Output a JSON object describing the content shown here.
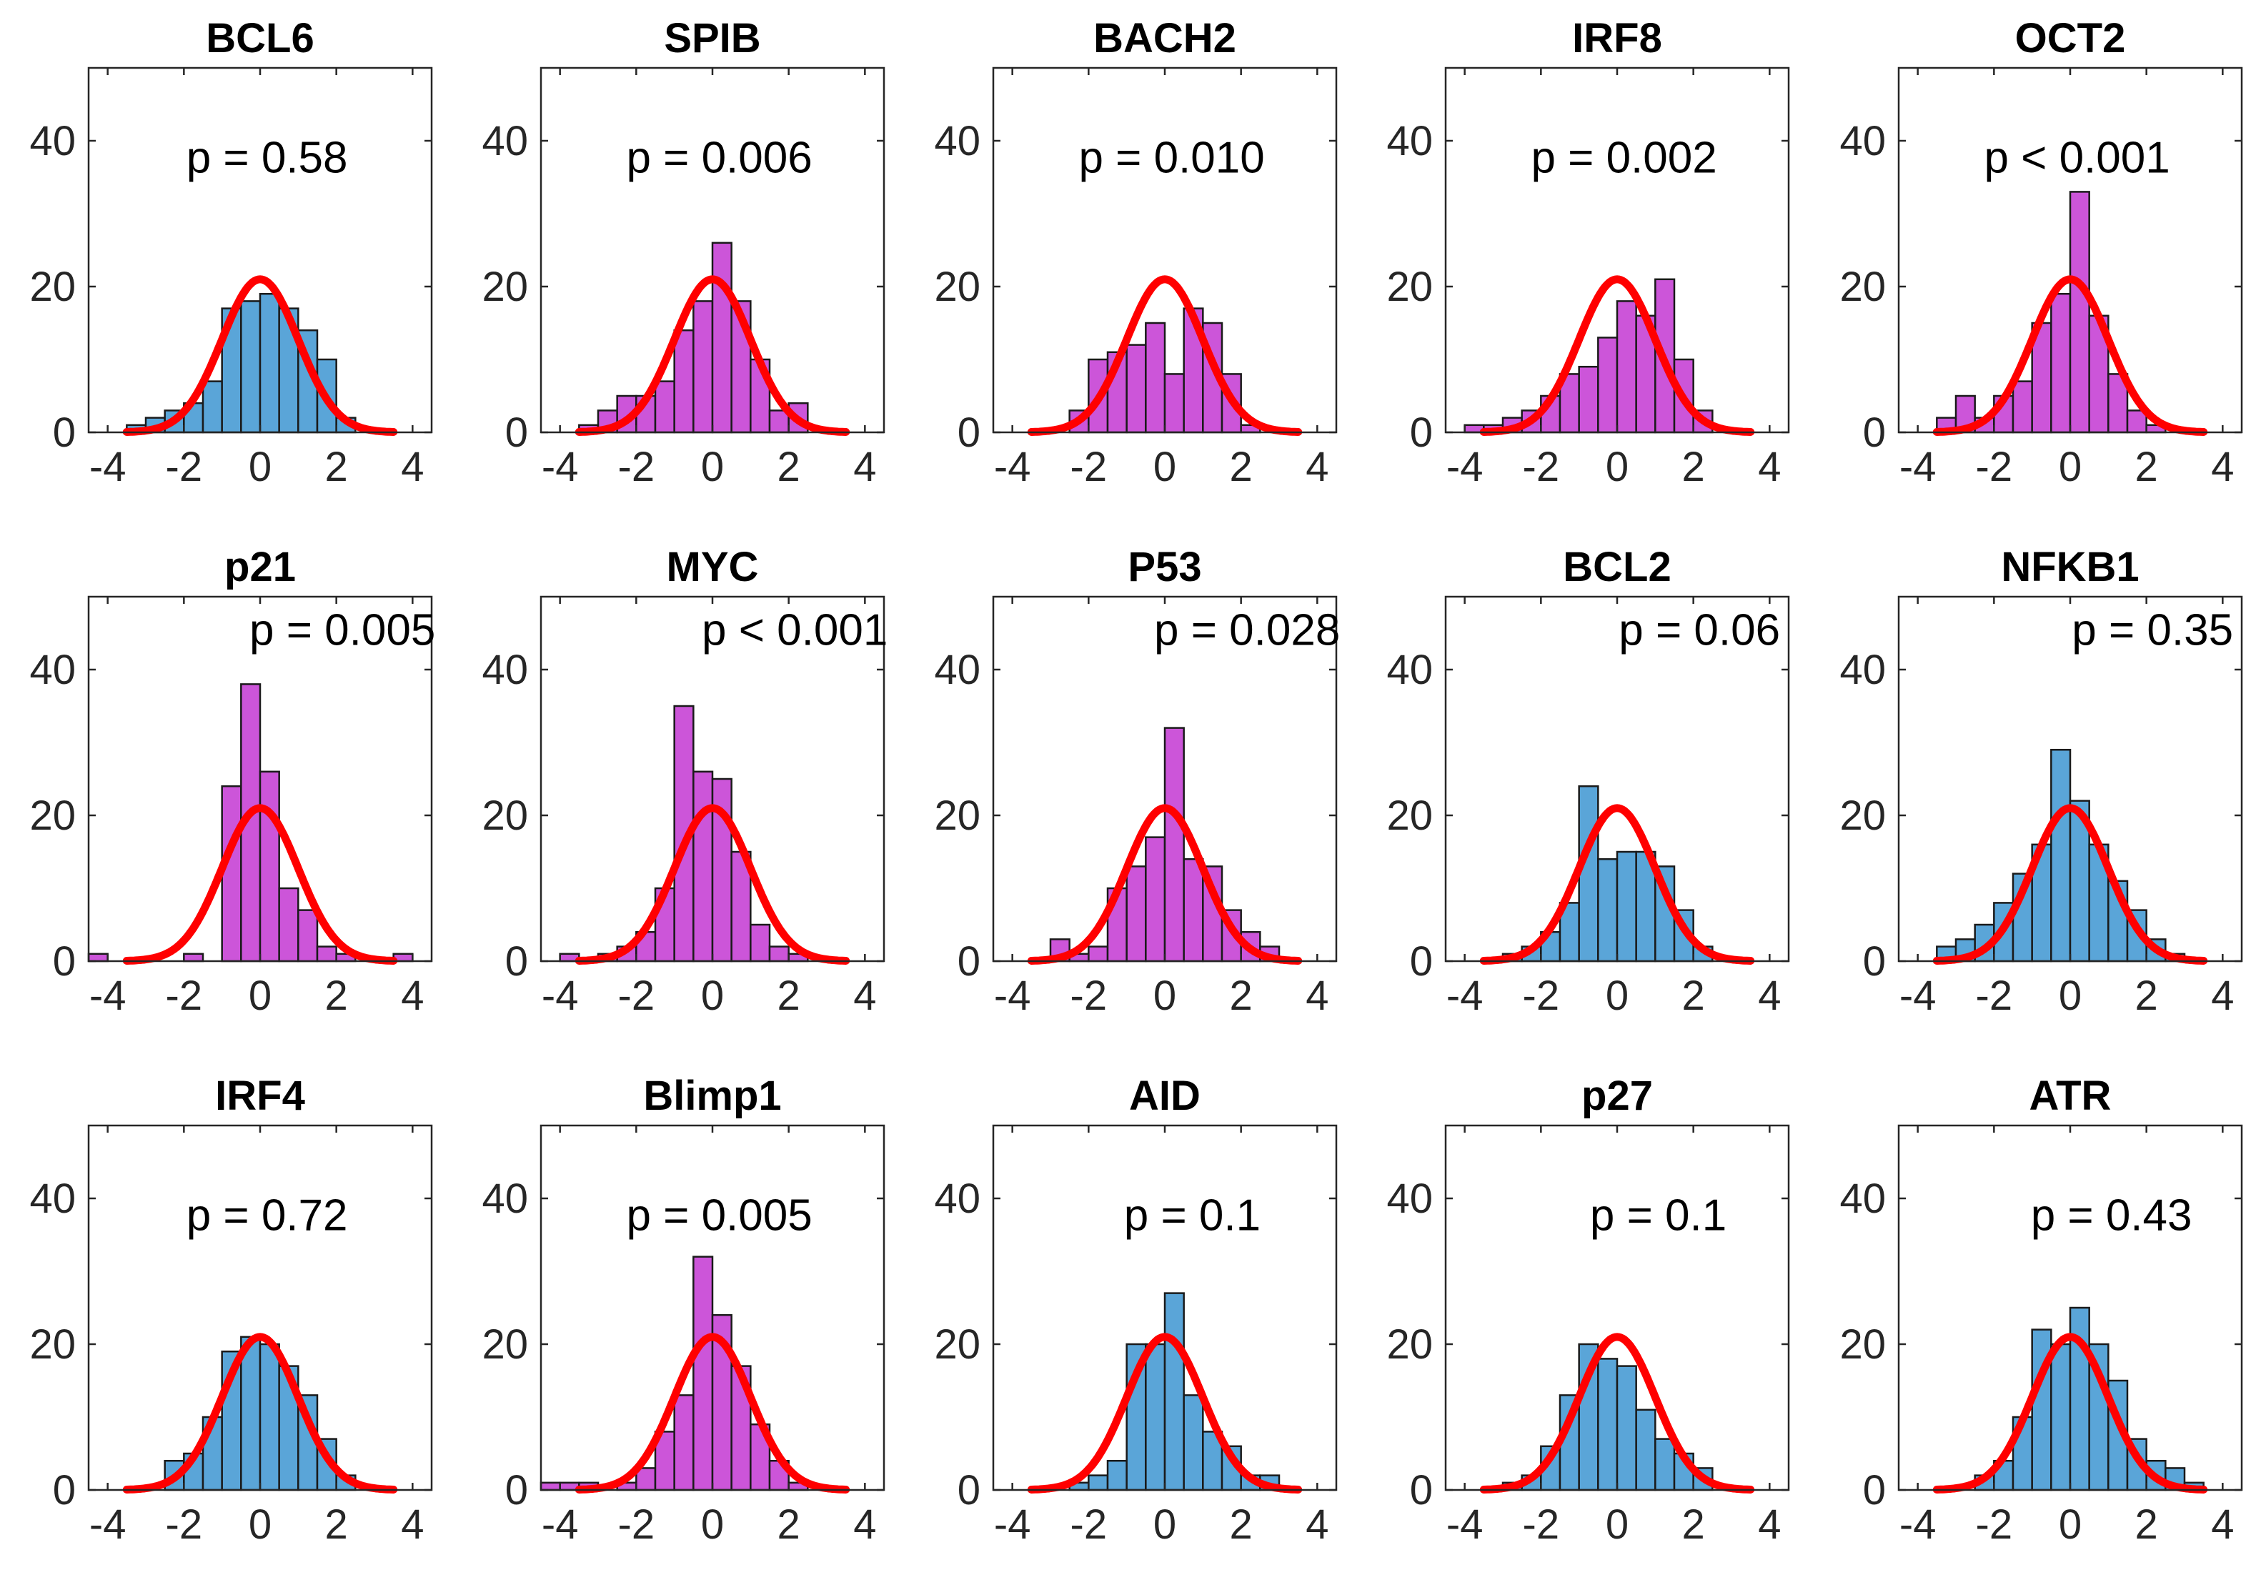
{
  "colors": {
    "blue": "#5aa5d8",
    "magenta": "#cc55d9",
    "curve": "#ff0000",
    "axis": "#262626"
  },
  "chart_data": [
    {
      "type": "bar",
      "title": "BCL6",
      "annotation": "p = 0.58",
      "color": "blue",
      "x": [
        -3.25,
        -2.75,
        -2.25,
        -1.75,
        -1.25,
        -0.75,
        -0.25,
        0.25,
        0.75,
        1.25,
        1.75,
        2.25
      ],
      "values": [
        1,
        2,
        3,
        4,
        7,
        17,
        18,
        19,
        17,
        14,
        10,
        2
      ],
      "xticks": [
        "-4",
        "-2",
        "0",
        "2",
        "4"
      ],
      "yticks": [
        "0",
        "20",
        "40"
      ],
      "xlim": [
        -4.5,
        4.5
      ],
      "ylim": [
        0,
        50
      ]
    },
    {
      "type": "bar",
      "title": "SPIB",
      "annotation": "p = 0.006",
      "color": "magenta",
      "x": [
        -3.25,
        -2.75,
        -2.25,
        -1.75,
        -1.25,
        -0.75,
        -0.25,
        0.25,
        0.75,
        1.25,
        1.75,
        2.25
      ],
      "values": [
        1,
        3,
        5,
        5,
        7,
        14,
        18,
        26,
        18,
        10,
        3,
        4
      ],
      "xticks": [
        "-4",
        "-2",
        "0",
        "2",
        "4"
      ],
      "yticks": [
        "0",
        "20",
        "40"
      ],
      "xlim": [
        -4.5,
        4.5
      ],
      "ylim": [
        0,
        50
      ]
    },
    {
      "type": "bar",
      "title": "BACH2",
      "annotation": "p = 0.010",
      "color": "magenta",
      "x": [
        -2.25,
        -1.75,
        -1.25,
        -0.75,
        -0.25,
        0.25,
        0.75,
        1.25,
        1.75,
        2.25
      ],
      "values": [
        3,
        10,
        11,
        12,
        15,
        8,
        17,
        15,
        8,
        1
      ],
      "xticks": [
        "-4",
        "-2",
        "0",
        "2",
        "4"
      ],
      "yticks": [
        "0",
        "20",
        "40"
      ],
      "xlim": [
        -4.5,
        4.5
      ],
      "ylim": [
        0,
        50
      ]
    },
    {
      "type": "bar",
      "title": "IRF8",
      "annotation": "p = 0.002",
      "color": "magenta",
      "x": [
        -3.75,
        -3.25,
        -2.75,
        -2.25,
        -1.75,
        -1.25,
        -0.75,
        -0.25,
        0.25,
        0.75,
        1.25,
        1.75,
        2.25
      ],
      "values": [
        1,
        1,
        2,
        3,
        5,
        8,
        9,
        13,
        18,
        16,
        21,
        10,
        3
      ],
      "xticks": [
        "-4",
        "-2",
        "0",
        "2",
        "4"
      ],
      "yticks": [
        "0",
        "20",
        "40"
      ],
      "xlim": [
        -4.5,
        4.5
      ],
      "ylim": [
        0,
        50
      ]
    },
    {
      "type": "bar",
      "title": "OCT2",
      "annotation": "p < 0.001",
      "color": "magenta",
      "x": [
        -3.25,
        -2.75,
        -2.25,
        -1.75,
        -1.25,
        -0.75,
        -0.25,
        0.25,
        0.75,
        1.25,
        1.75,
        2.25
      ],
      "values": [
        2,
        5,
        2,
        5,
        7,
        15,
        19,
        33,
        16,
        8,
        3,
        1
      ],
      "xticks": [
        "-4",
        "-2",
        "0",
        "2",
        "4"
      ],
      "yticks": [
        "0",
        "20",
        "40"
      ],
      "xlim": [
        -4.5,
        4.5
      ],
      "ylim": [
        0,
        50
      ]
    },
    {
      "type": "bar",
      "title": "p21",
      "annotation": "p = 0.005",
      "color": "magenta",
      "x": [
        -4.25,
        -2.25,
        -1.75,
        -1.25,
        -0.75,
        -0.25,
        0.25,
        0.75,
        1.25,
        1.75,
        2.25,
        2.75,
        3.75
      ],
      "values": [
        1,
        0,
        1,
        0,
        24,
        38,
        26,
        10,
        7,
        2,
        1,
        0,
        1
      ],
      "xticks": [
        "-4",
        "-2",
        "0",
        "2",
        "4"
      ],
      "yticks": [
        "0",
        "20",
        "40"
      ],
      "xlim": [
        -4.5,
        4.5
      ],
      "ylim": [
        0,
        50
      ]
    },
    {
      "type": "bar",
      "title": "MYC",
      "annotation": "p < 0.001",
      "color": "magenta",
      "x": [
        -3.75,
        -3.25,
        -2.75,
        -2.25,
        -1.75,
        -1.25,
        -0.75,
        -0.25,
        0.25,
        0.75,
        1.25,
        1.75,
        2.25,
        2.75
      ],
      "values": [
        1,
        0,
        1,
        2,
        4,
        10,
        35,
        26,
        25,
        15,
        5,
        2,
        1,
        0
      ],
      "xticks": [
        "-4",
        "-2",
        "0",
        "2",
        "4"
      ],
      "yticks": [
        "0",
        "20",
        "40"
      ],
      "xlim": [
        -4.5,
        4.5
      ],
      "ylim": [
        0,
        50
      ]
    },
    {
      "type": "bar",
      "title": "P53",
      "annotation": "p = 0.028",
      "color": "magenta",
      "x": [
        -2.75,
        -2.25,
        -1.75,
        -1.25,
        -0.75,
        -0.25,
        0.25,
        0.75,
        1.25,
        1.75,
        2.25,
        2.75
      ],
      "values": [
        3,
        1,
        2,
        10,
        13,
        17,
        32,
        14,
        13,
        7,
        4,
        2
      ],
      "xticks": [
        "-4",
        "-2",
        "0",
        "2",
        "4"
      ],
      "yticks": [
        "0",
        "20",
        "40"
      ],
      "xlim": [
        -4.5,
        4.5
      ],
      "ylim": [
        0,
        50
      ]
    },
    {
      "type": "bar",
      "title": "BCL2",
      "annotation": "p = 0.06",
      "color": "blue",
      "x": [
        -2.75,
        -2.25,
        -1.75,
        -1.25,
        -0.75,
        -0.25,
        0.25,
        0.75,
        1.25,
        1.75,
        2.25
      ],
      "values": [
        1,
        2,
        4,
        8,
        24,
        14,
        15,
        15,
        13,
        7,
        2
      ],
      "xticks": [
        "-4",
        "-2",
        "0",
        "2",
        "4"
      ],
      "yticks": [
        "0",
        "20",
        "40"
      ],
      "xlim": [
        -4.5,
        4.5
      ],
      "ylim": [
        0,
        50
      ]
    },
    {
      "type": "bar",
      "title": "NFKB1",
      "annotation": "p = 0.35",
      "color": "blue",
      "x": [
        -3.25,
        -2.75,
        -2.25,
        -1.75,
        -1.25,
        -0.75,
        -0.25,
        0.25,
        0.75,
        1.25,
        1.75,
        2.25,
        2.75
      ],
      "values": [
        2,
        3,
        5,
        8,
        12,
        16,
        29,
        22,
        16,
        11,
        7,
        3,
        1
      ],
      "xticks": [
        "-4",
        "-2",
        "0",
        "2",
        "4"
      ],
      "yticks": [
        "0",
        "20",
        "40"
      ],
      "xlim": [
        -4.5,
        4.5
      ],
      "ylim": [
        0,
        50
      ]
    },
    {
      "type": "bar",
      "title": "IRF4",
      "annotation": "p = 0.72",
      "color": "blue",
      "x": [
        -2.25,
        -1.75,
        -1.25,
        -0.75,
        -0.25,
        0.25,
        0.75,
        1.25,
        1.75,
        2.25
      ],
      "values": [
        4,
        5,
        10,
        19,
        21,
        20,
        17,
        13,
        7,
        2
      ],
      "xticks": [
        "-4",
        "-2",
        "0",
        "2",
        "4"
      ],
      "yticks": [
        "0",
        "20",
        "40"
      ],
      "xlim": [
        -4.5,
        4.5
      ],
      "ylim": [
        0,
        50
      ]
    },
    {
      "type": "bar",
      "title": "Blimp1",
      "annotation": "p = 0.005",
      "color": "magenta",
      "x": [
        -4.25,
        -3.75,
        -3.25,
        -2.25,
        -1.75,
        -1.25,
        -0.75,
        -0.25,
        0.25,
        0.75,
        1.25,
        1.75,
        2.25
      ],
      "values": [
        1,
        1,
        1,
        1,
        3,
        8,
        13,
        32,
        24,
        17,
        9,
        4,
        1
      ],
      "xticks": [
        "-4",
        "-2",
        "0",
        "2",
        "4"
      ],
      "yticks": [
        "0",
        "20",
        "40"
      ],
      "xlim": [
        -4.5,
        4.5
      ],
      "ylim": [
        0,
        50
      ]
    },
    {
      "type": "bar",
      "title": "AID",
      "annotation": "p = 0.1",
      "color": "blue",
      "x": [
        -2.25,
        -1.75,
        -1.25,
        -0.75,
        -0.25,
        0.25,
        0.75,
        1.25,
        1.75,
        2.25,
        2.75
      ],
      "values": [
        1,
        2,
        4,
        20,
        20,
        27,
        13,
        8,
        6,
        2,
        2
      ],
      "xticks": [
        "-4",
        "-2",
        "0",
        "2",
        "4"
      ],
      "yticks": [
        "0",
        "20",
        "40"
      ],
      "xlim": [
        -4.5,
        4.5
      ],
      "ylim": [
        0,
        50
      ]
    },
    {
      "type": "bar",
      "title": "p27",
      "annotation": "p = 0.1",
      "color": "blue",
      "x": [
        -2.75,
        -2.25,
        -1.75,
        -1.25,
        -0.75,
        -0.25,
        0.25,
        0.75,
        1.25,
        1.75,
        2.25
      ],
      "values": [
        1,
        2,
        6,
        13,
        20,
        18,
        17,
        11,
        7,
        5,
        3
      ],
      "xticks": [
        "-4",
        "-2",
        "0",
        "2",
        "4"
      ],
      "yticks": [
        "0",
        "20",
        "40"
      ],
      "xlim": [
        -4.5,
        4.5
      ],
      "ylim": [
        0,
        50
      ]
    },
    {
      "type": "bar",
      "title": "ATR",
      "annotation": "p = 0.43",
      "color": "blue",
      "x": [
        -2.25,
        -1.75,
        -1.25,
        -0.75,
        -0.25,
        0.25,
        0.75,
        1.25,
        1.75,
        2.25,
        2.75,
        3.25
      ],
      "values": [
        2,
        4,
        10,
        22,
        20,
        25,
        20,
        15,
        7,
        4,
        3,
        1
      ],
      "xticks": [
        "-4",
        "-2",
        "0",
        "2",
        "4"
      ],
      "yticks": [
        "0",
        "20",
        "40"
      ],
      "xlim": [
        -4.5,
        4.5
      ],
      "ylim": [
        0,
        50
      ]
    }
  ]
}
